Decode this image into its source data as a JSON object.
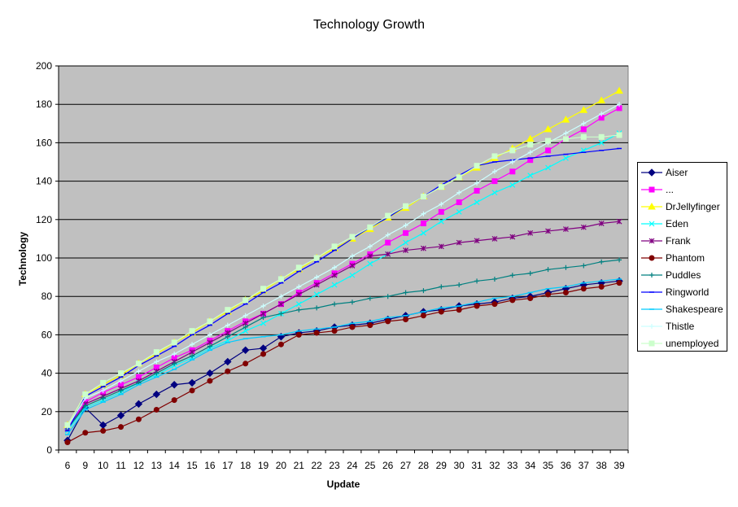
{
  "chart_data": {
    "type": "line",
    "title": "Technology Growth",
    "xlabel": "Update",
    "ylabel": "Technology",
    "ylim": [
      0,
      200
    ],
    "yticks": [
      "0",
      "20",
      "40",
      "60",
      "80",
      "100",
      "120",
      "140",
      "160",
      "180",
      "200"
    ],
    "categories": [
      "6",
      "9",
      "10",
      "11",
      "12",
      "13",
      "14",
      "15",
      "16",
      "17",
      "18",
      "19",
      "20",
      "21",
      "22",
      "23",
      "24",
      "25",
      "26",
      "27",
      "28",
      "29",
      "30",
      "31",
      "32",
      "33",
      "34",
      "35",
      "36",
      "37",
      "38",
      "39"
    ],
    "grid": "horizontal",
    "plot_background": "#c0c0c0",
    "legend_position": "right",
    "series": [
      {
        "name": "Aiser",
        "color": "#000080",
        "marker": "diamond",
        "values": [
          5,
          22,
          13,
          18,
          24,
          29,
          34,
          35,
          40,
          46,
          52,
          53,
          59,
          61,
          62,
          64,
          65,
          66,
          68,
          70,
          72,
          73,
          75,
          76,
          77,
          79,
          80,
          82,
          84,
          86,
          87,
          88
        ]
      },
      {
        "name": "...",
        "color": "#ff00ff",
        "marker": "square",
        "values": [
          12,
          25,
          30,
          34,
          38,
          43,
          48,
          52,
          57,
          62,
          67,
          71,
          76,
          82,
          87,
          92,
          97,
          102,
          108,
          113,
          118,
          124,
          129,
          135,
          140,
          145,
          151,
          156,
          162,
          167,
          173,
          178
        ]
      },
      {
        "name": "DrJellyfinger",
        "color": "#ffff00",
        "marker": "triangle",
        "values": [
          13,
          29,
          34,
          39,
          45,
          50,
          56,
          61,
          67,
          72,
          78,
          83,
          89,
          94,
          100,
          105,
          110,
          115,
          121,
          126,
          132,
          137,
          142,
          147,
          152,
          157,
          162,
          167,
          172,
          177,
          182,
          187
        ]
      },
      {
        "name": "Eden",
        "color": "#00ffff",
        "marker": "x",
        "values": [
          10,
          22,
          26,
          30,
          35,
          39,
          44,
          48,
          53,
          57,
          62,
          66,
          71,
          76,
          81,
          86,
          91,
          97,
          102,
          108,
          113,
          119,
          124,
          129,
          134,
          138,
          143,
          147,
          152,
          156,
          160,
          165
        ]
      },
      {
        "name": "Frank",
        "color": "#800080",
        "marker": "star",
        "values": [
          11,
          24,
          28,
          32,
          36,
          41,
          46,
          51,
          56,
          61,
          66,
          71,
          76,
          81,
          86,
          91,
          96,
          101,
          102,
          104,
          105,
          106,
          108,
          109,
          110,
          111,
          113,
          114,
          115,
          116,
          118,
          119
        ]
      },
      {
        "name": "Phantom",
        "color": "#800000",
        "marker": "circle",
        "values": [
          4,
          9,
          10,
          12,
          16,
          21,
          26,
          31,
          36,
          41,
          45,
          50,
          55,
          60,
          61,
          62,
          64,
          65,
          67,
          68,
          70,
          72,
          73,
          75,
          76,
          78,
          79,
          81,
          82,
          84,
          85,
          87
        ]
      },
      {
        "name": "Puddles",
        "color": "#008080",
        "marker": "plus",
        "values": [
          11,
          23,
          27,
          31,
          35,
          40,
          45,
          49,
          54,
          59,
          64,
          69,
          71,
          73,
          74,
          76,
          77,
          79,
          80,
          82,
          83,
          85,
          86,
          88,
          89,
          91,
          92,
          94,
          95,
          96,
          98,
          99
        ]
      },
      {
        "name": "Ringworld",
        "color": "#0000ff",
        "marker": "dash",
        "values": [
          10,
          28,
          33,
          38,
          44,
          49,
          54,
          60,
          65,
          71,
          76,
          82,
          87,
          93,
          98,
          104,
          110,
          116,
          121,
          127,
          132,
          138,
          143,
          148,
          150,
          151,
          152,
          153,
          154,
          155,
          156,
          157
        ]
      },
      {
        "name": "Shakespeare",
        "color": "#00ccff",
        "marker": "dash",
        "values": [
          8,
          21,
          25,
          29,
          34,
          38,
          42,
          47,
          52,
          56,
          58,
          59,
          60,
          62,
          63,
          64,
          66,
          67,
          69,
          70,
          72,
          74,
          75,
          77,
          79,
          80,
          82,
          84,
          85,
          87,
          88,
          89
        ]
      },
      {
        "name": "Thistle",
        "color": "#ccffff",
        "marker": "plus",
        "values": [
          12,
          27,
          31,
          36,
          41,
          46,
          50,
          55,
          60,
          65,
          70,
          75,
          80,
          85,
          90,
          95,
          101,
          106,
          112,
          117,
          123,
          128,
          134,
          139,
          145,
          150,
          155,
          160,
          165,
          170,
          175,
          180
        ]
      },
      {
        "name": "unemployed",
        "color": "#ccffcc",
        "marker": "square",
        "values": [
          13,
          29,
          35,
          40,
          45,
          51,
          56,
          62,
          67,
          73,
          78,
          84,
          89,
          95,
          100,
          106,
          111,
          116,
          122,
          127,
          132,
          137,
          142,
          148,
          153,
          156,
          159,
          161,
          162,
          163,
          163,
          164
        ]
      }
    ]
  }
}
